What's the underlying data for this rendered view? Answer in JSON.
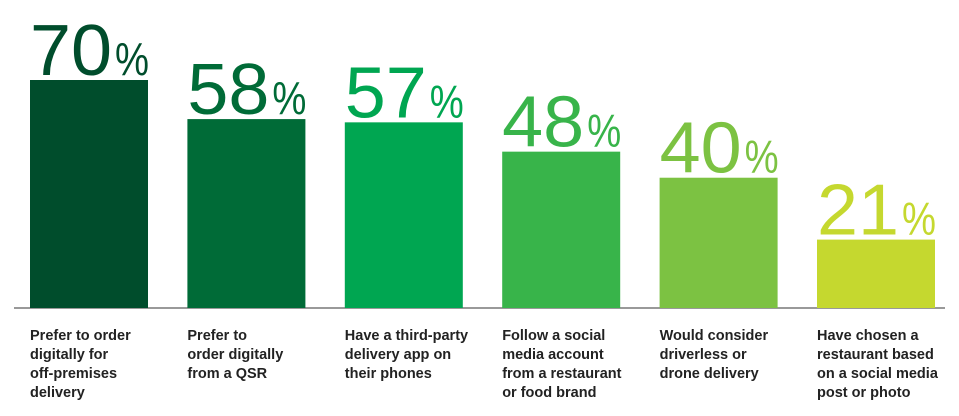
{
  "chart_data": {
    "type": "bar",
    "categories": [
      [
        "Prefer to order",
        "digitally for",
        "off-premises",
        "delivery"
      ],
      [
        "Prefer to",
        "order digitally",
        "from a QSR"
      ],
      [
        "Have a third-party",
        "delivery app on",
        "their phones"
      ],
      [
        "Follow a social",
        "media account",
        "from a restaurant",
        "or food brand"
      ],
      [
        "Would consider",
        "driverless or",
        "drone delivery"
      ],
      [
        "Have chosen a",
        "restaurant based",
        "on a social media",
        "post or photo"
      ]
    ],
    "values": [
      70,
      58,
      57,
      48,
      40,
      21
    ],
    "value_labels": [
      "70%",
      "58%",
      "57%",
      "48%",
      "40%",
      "21%"
    ],
    "colors": [
      "#004d2c",
      "#006b37",
      "#00a651",
      "#38b44a",
      "#7cc242",
      "#c5d82f"
    ],
    "ylim": [
      0,
      70
    ],
    "grid": false,
    "legend": "none"
  }
}
